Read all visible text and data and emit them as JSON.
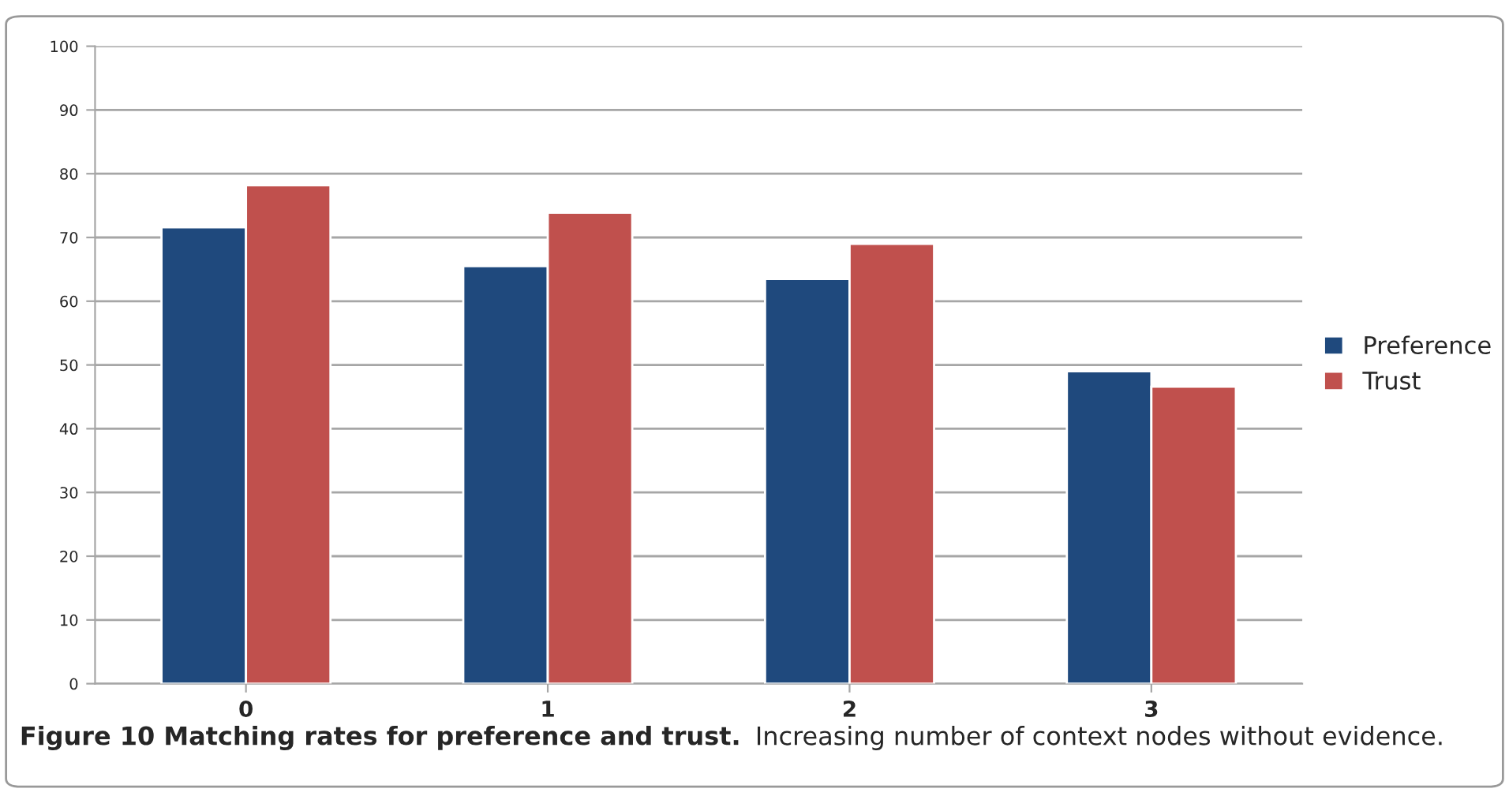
{
  "chart_data": {
    "type": "bar",
    "title": "Figure 10 Matching rates for preference and trust.",
    "subtitle": "Increasing number of context nodes without evidence.",
    "categories": [
      "0",
      "1",
      "2",
      "3"
    ],
    "series": [
      {
        "name": "Preference",
        "color": "#1f497d",
        "values": [
          71.6,
          65.5,
          63.5,
          49.0
        ]
      },
      {
        "name": "Trust",
        "color": "#c0504d",
        "values": [
          78.2,
          73.9,
          69.0,
          46.6
        ]
      }
    ],
    "ylim": [
      0,
      100
    ],
    "yticks": [
      0,
      10,
      20,
      30,
      40,
      50,
      60,
      70,
      80,
      90,
      100
    ],
    "grid": "y",
    "legend": "right"
  }
}
